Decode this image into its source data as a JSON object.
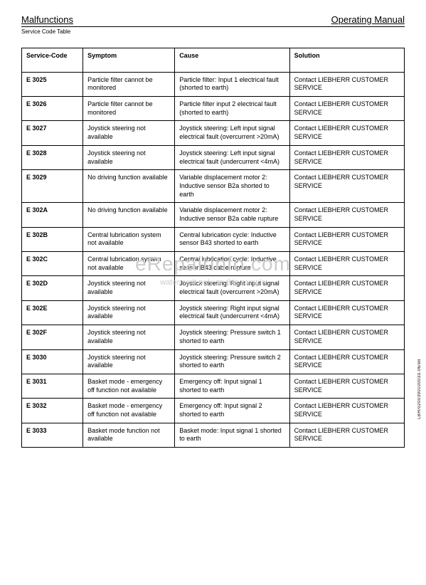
{
  "header": {
    "left": "Malfunctions",
    "right": "Operating Manual",
    "sub": "Service Code Table"
  },
  "columns": [
    "Service-Code",
    "Symptom",
    "Cause",
    "Solution"
  ],
  "rows": [
    {
      "code": "E 3025",
      "symptom": "Particle filter cannot be monitored",
      "cause": "Particle filter: Input 1 electrical fault (shorted to earth)",
      "solution": "Contact LIEBHERR CUSTOMER SERVICE"
    },
    {
      "code": "E 3026",
      "symptom": "Particle filter cannot be monitored",
      "cause": "Particle filter input 2 electrical fault (shorted to earth)",
      "solution": "Contact LIEBHERR CUSTOMER SERVICE"
    },
    {
      "code": "E 3027",
      "symptom": "Joystick steering not available",
      "cause": "Joystick steering: Left input signal electrical fault (overcurrent >20mA)",
      "solution": "Contact LIEBHERR CUSTOMER SERVICE"
    },
    {
      "code": "E 3028",
      "symptom": "Joystick steering not available",
      "cause": "Joystick steering: Left input signal electrical fault (undercurrent <4mA)",
      "solution": "Contact LIEBHERR CUSTOMER SERVICE"
    },
    {
      "code": "E 3029",
      "symptom": "No driving function available",
      "cause": "Variable displacement motor 2: Inductive sensor B2a shorted to earth",
      "solution": "Contact LIEBHERR CUSTOMER SERVICE"
    },
    {
      "code": "E 302A",
      "symptom": "No driving function available",
      "cause": "Variable displacement motor 2: Inductive sensor B2a cable rupture",
      "solution": "Contact LIEBHERR CUSTOMER SERVICE"
    },
    {
      "code": "E 302B",
      "symptom": "Central lubrication system not available",
      "cause": "Central lubrication cycle: Inductive sensor B43 shorted to earth",
      "solution": "Contact LIEBHERR CUSTOMER SERVICE"
    },
    {
      "code": "E 302C",
      "symptom": "Central lubrication system not available",
      "cause": "Central lubrication cycle: Inductive sensor B43 cable rupture",
      "solution": "Contact LIEBHERR CUSTOMER SERVICE"
    },
    {
      "code": "E 302D",
      "symptom": "Joystick steering not available",
      "cause": "Joystick steering: Right input signal electrical fault (overcurrent >20mA)",
      "solution": "Contact LIEBHERR CUSTOMER SERVICE"
    },
    {
      "code": "E 302E",
      "symptom": "Joystick steering not available",
      "cause": "Joystick steering: Right input signal electrical fault (undercurrent <4mA)",
      "solution": "Contact LIEBHERR CUSTOMER SERVICE"
    },
    {
      "code": "E 302F",
      "symptom": "Joystick steering not available",
      "cause": "Joystick steering: Pressure switch 1 shorted to earth",
      "solution": "Contact LIEBHERR CUSTOMER SERVICE"
    },
    {
      "code": "E 3030",
      "symptom": "Joystick steering not available",
      "cause": "Joystick steering: Pressure switch 2 shorted to earth",
      "solution": "Contact LIEBHERR CUSTOMER SERVICE"
    },
    {
      "code": "E 3031",
      "symptom": "Basket mode - emergency off function not available",
      "cause": "Emergency off: Input signal 1 shorted to earth",
      "solution": "Contact LIEBHERR CUSTOMER SERVICE"
    },
    {
      "code": "E 3032",
      "symptom": "Basket mode - emergency off function not available",
      "cause": "Emergency off: Input signal 2 shorted to earth",
      "solution": "Contact LIEBHERR CUSTOMER SERVICE"
    },
    {
      "code": "E 3033",
      "symptom": "Basket mode function not available",
      "cause": "Basket mode: Input signal 1 shorted to earth",
      "solution": "Contact LIEBHERR CUSTOMER SERVICE"
    }
  ],
  "watermark": {
    "line1": "eRepairinfo.com",
    "line2": "watermark only on this sample"
  },
  "sidecode": "LBH/0200390100033.06/en"
}
